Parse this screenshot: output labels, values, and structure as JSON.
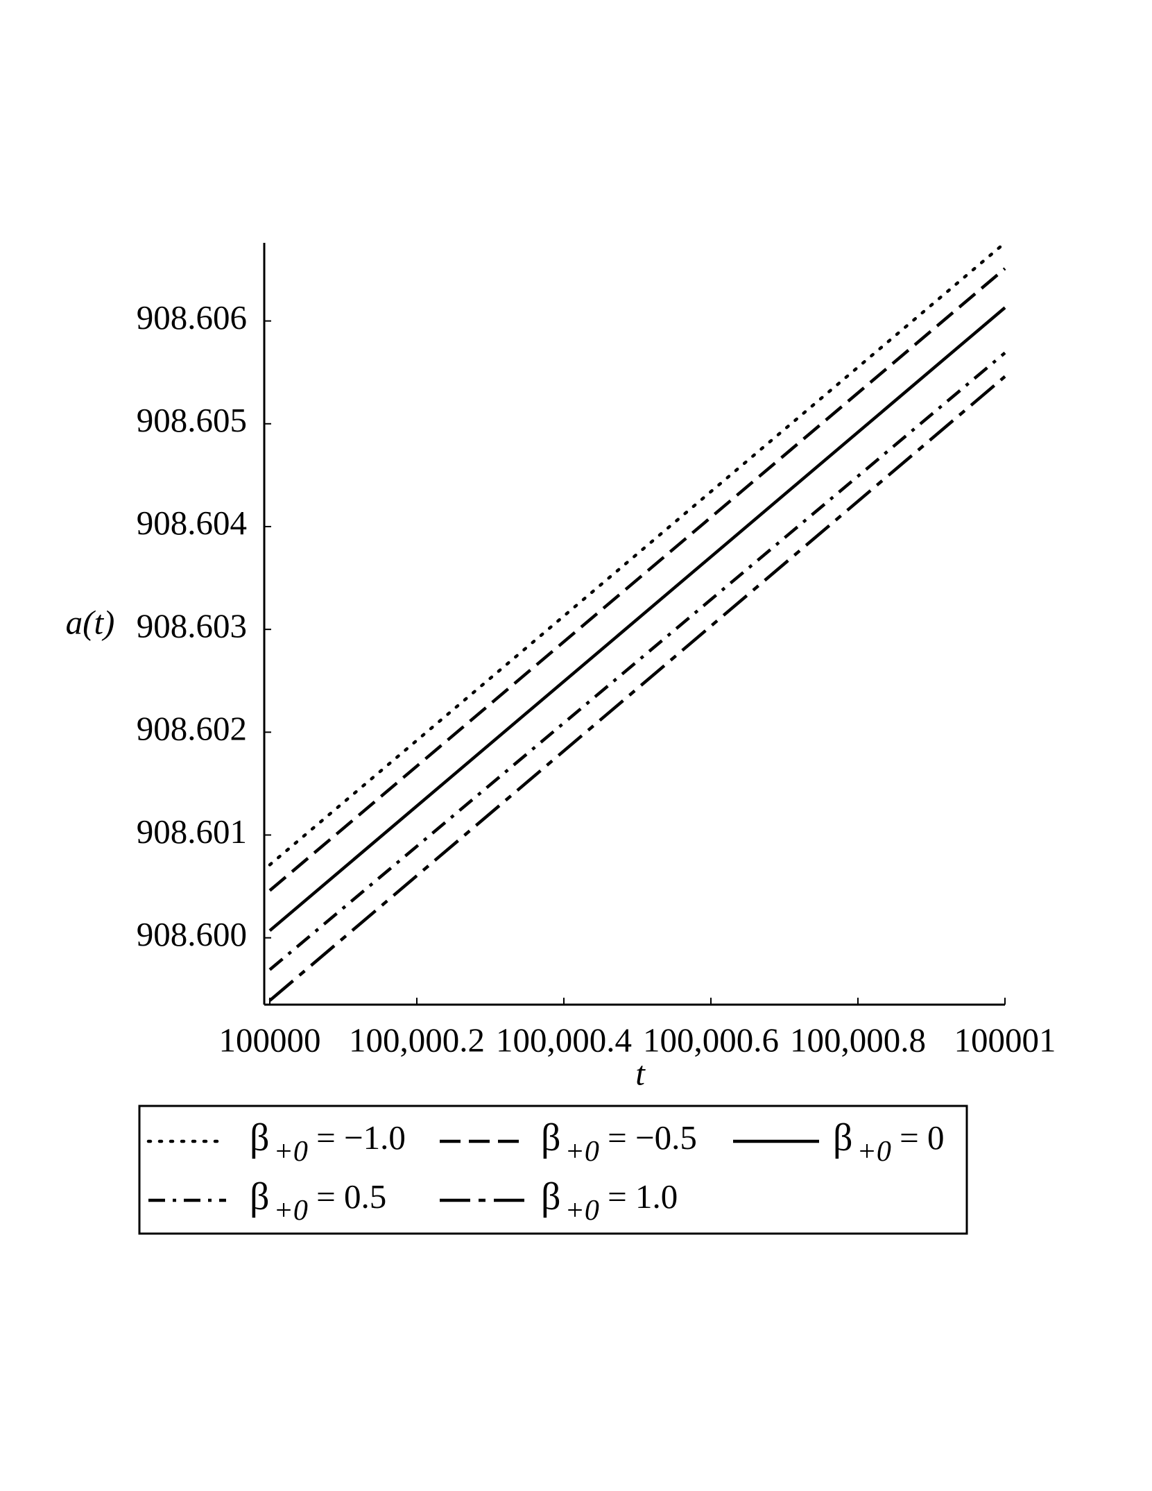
{
  "chart_data": {
    "type": "line",
    "xlabel": "t",
    "ylabel": "a(t)",
    "x": [
      100000,
      100001
    ],
    "series": [
      {
        "name": "β+0 = −1.0",
        "color": "#000000",
        "dash": "dot",
        "values": [
          908.60071,
          908.60676
        ]
      },
      {
        "name": "β+0 = −0.5",
        "color": "#000000",
        "dash": "dash",
        "values": [
          908.60046,
          908.60651
        ]
      },
      {
        "name": "β+0 = 0",
        "color": "#000000",
        "dash": "solid",
        "values": [
          908.60007,
          908.60613
        ]
      },
      {
        "name": "β+0 = 0.5",
        "color": "#000000",
        "dash": "dashdot",
        "values": [
          908.59969,
          908.60569
        ]
      },
      {
        "name": "β+0 = 1.0",
        "color": "#000000",
        "dash": "longdash",
        "values": [
          908.59939,
          908.60546
        ]
      }
    ],
    "xlim": [
      100000,
      100001
    ],
    "xticks": [
      100000,
      {
        "value": 100000.2,
        "label": "100,000.2"
      },
      {
        "value": 100000.4,
        "label": "100,000.4"
      },
      {
        "value": 100000.6,
        "label": "100,000.6"
      },
      {
        "value": 100000.8,
        "label": "100,000.8"
      },
      100001
    ],
    "ylim": [
      908.59935,
      908.60676
    ],
    "yticks": [
      {
        "value": 908.6,
        "label": "908.600"
      },
      908.601,
      908.602,
      908.603,
      908.604,
      908.605,
      908.606
    ],
    "grid": false,
    "legend": "bottom"
  }
}
